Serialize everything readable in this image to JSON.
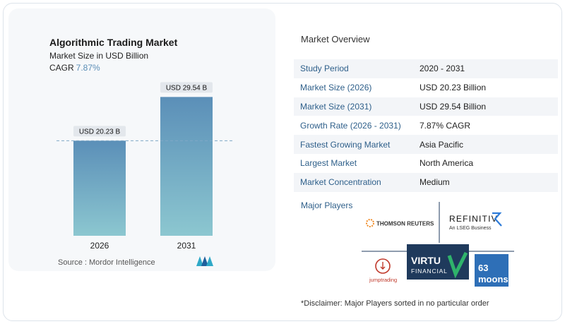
{
  "chart_data": {
    "type": "bar",
    "title": "Algorithmic Trading Market",
    "subtitle": "Market Size in USD Billion",
    "cagr_label": "CAGR",
    "cagr_value": "7.87%",
    "categories": [
      "2026",
      "2031"
    ],
    "values": [
      20.23,
      29.54
    ],
    "value_labels": [
      "USD 20.23 B",
      "USD 29.54 B"
    ],
    "bar_color_top": "#5b8fb8",
    "bar_color_bottom": "#8cc7d0",
    "reference_line": "dashed line at 2026 value",
    "ylim": [
      0,
      32
    ],
    "grid": false,
    "legend": "none"
  },
  "source": {
    "text": "Source :  Mordor Intelligence",
    "logo_icon": "mordor-intelligence-logo"
  },
  "overview": {
    "title": "Market Overview",
    "rows": [
      {
        "key": "Study Period",
        "value": "2020 - 2031"
      },
      {
        "key": "Market Size (2026)",
        "value": "USD 20.23 Billion"
      },
      {
        "key": "Market Size (2031)",
        "value": "USD 29.54 Billion"
      },
      {
        "key": "Growth Rate (2026 - 2031)",
        "value": "7.87% CAGR"
      },
      {
        "key": "Fastest Growing Market",
        "value": "Asia Pacific"
      },
      {
        "key": "Largest Market",
        "value": "North America"
      },
      {
        "key": "Market Concentration",
        "value": "Medium"
      }
    ]
  },
  "major_players": {
    "label": "Major Players",
    "logos": {
      "thomson": "THOMSON REUTERS",
      "refinitiv": "REFINITIV",
      "refinitiv_sub": "An LSEG Business",
      "virtu_1": "VIRTU",
      "virtu_2": "FINANCIAL",
      "jump": "jumptrading",
      "moons_1": "63",
      "moons_2": "moons"
    }
  },
  "disclaimer": "*Disclaimer: Major Players sorted in no particular order",
  "colors": {
    "accent": "#2e5f8a",
    "cagr": "#5a8db6",
    "virtu_bg": "#1f3a5c",
    "virtu_check": "#2fb36b",
    "moons_bg": "#2e6fb7"
  }
}
